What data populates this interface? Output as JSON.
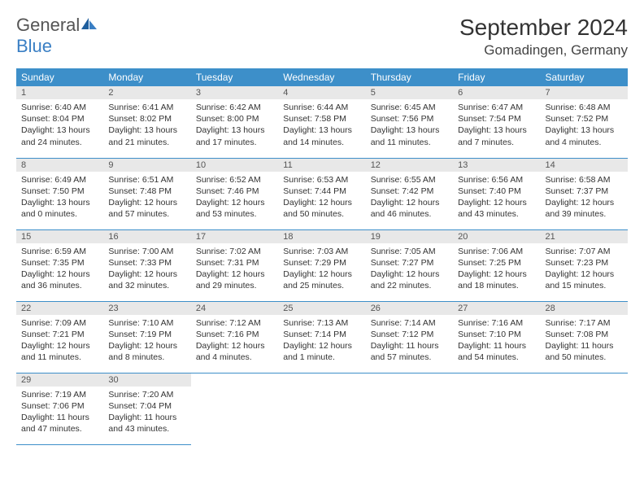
{
  "logo": {
    "general": "General",
    "blue": "Blue"
  },
  "title": "September 2024",
  "location": "Gomadingen, Germany",
  "colors": {
    "header_bg": "#3d8fc9",
    "header_fg": "#ffffff",
    "daynum_bg": "#e8e8e8",
    "border": "#3d8fc9",
    "logo_blue": "#3a7fc4"
  },
  "weekdays": [
    "Sunday",
    "Monday",
    "Tuesday",
    "Wednesday",
    "Thursday",
    "Friday",
    "Saturday"
  ],
  "weeks": [
    [
      {
        "n": "1",
        "sr": "6:40 AM",
        "ss": "8:04 PM",
        "dl": "13 hours and 24 minutes."
      },
      {
        "n": "2",
        "sr": "6:41 AM",
        "ss": "8:02 PM",
        "dl": "13 hours and 21 minutes."
      },
      {
        "n": "3",
        "sr": "6:42 AM",
        "ss": "8:00 PM",
        "dl": "13 hours and 17 minutes."
      },
      {
        "n": "4",
        "sr": "6:44 AM",
        "ss": "7:58 PM",
        "dl": "13 hours and 14 minutes."
      },
      {
        "n": "5",
        "sr": "6:45 AM",
        "ss": "7:56 PM",
        "dl": "13 hours and 11 minutes."
      },
      {
        "n": "6",
        "sr": "6:47 AM",
        "ss": "7:54 PM",
        "dl": "13 hours and 7 minutes."
      },
      {
        "n": "7",
        "sr": "6:48 AM",
        "ss": "7:52 PM",
        "dl": "13 hours and 4 minutes."
      }
    ],
    [
      {
        "n": "8",
        "sr": "6:49 AM",
        "ss": "7:50 PM",
        "dl": "13 hours and 0 minutes."
      },
      {
        "n": "9",
        "sr": "6:51 AM",
        "ss": "7:48 PM",
        "dl": "12 hours and 57 minutes."
      },
      {
        "n": "10",
        "sr": "6:52 AM",
        "ss": "7:46 PM",
        "dl": "12 hours and 53 minutes."
      },
      {
        "n": "11",
        "sr": "6:53 AM",
        "ss": "7:44 PM",
        "dl": "12 hours and 50 minutes."
      },
      {
        "n": "12",
        "sr": "6:55 AM",
        "ss": "7:42 PM",
        "dl": "12 hours and 46 minutes."
      },
      {
        "n": "13",
        "sr": "6:56 AM",
        "ss": "7:40 PM",
        "dl": "12 hours and 43 minutes."
      },
      {
        "n": "14",
        "sr": "6:58 AM",
        "ss": "7:37 PM",
        "dl": "12 hours and 39 minutes."
      }
    ],
    [
      {
        "n": "15",
        "sr": "6:59 AM",
        "ss": "7:35 PM",
        "dl": "12 hours and 36 minutes."
      },
      {
        "n": "16",
        "sr": "7:00 AM",
        "ss": "7:33 PM",
        "dl": "12 hours and 32 minutes."
      },
      {
        "n": "17",
        "sr": "7:02 AM",
        "ss": "7:31 PM",
        "dl": "12 hours and 29 minutes."
      },
      {
        "n": "18",
        "sr": "7:03 AM",
        "ss": "7:29 PM",
        "dl": "12 hours and 25 minutes."
      },
      {
        "n": "19",
        "sr": "7:05 AM",
        "ss": "7:27 PM",
        "dl": "12 hours and 22 minutes."
      },
      {
        "n": "20",
        "sr": "7:06 AM",
        "ss": "7:25 PM",
        "dl": "12 hours and 18 minutes."
      },
      {
        "n": "21",
        "sr": "7:07 AM",
        "ss": "7:23 PM",
        "dl": "12 hours and 15 minutes."
      }
    ],
    [
      {
        "n": "22",
        "sr": "7:09 AM",
        "ss": "7:21 PM",
        "dl": "12 hours and 11 minutes."
      },
      {
        "n": "23",
        "sr": "7:10 AM",
        "ss": "7:19 PM",
        "dl": "12 hours and 8 minutes."
      },
      {
        "n": "24",
        "sr": "7:12 AM",
        "ss": "7:16 PM",
        "dl": "12 hours and 4 minutes."
      },
      {
        "n": "25",
        "sr": "7:13 AM",
        "ss": "7:14 PM",
        "dl": "12 hours and 1 minute."
      },
      {
        "n": "26",
        "sr": "7:14 AM",
        "ss": "7:12 PM",
        "dl": "11 hours and 57 minutes."
      },
      {
        "n": "27",
        "sr": "7:16 AM",
        "ss": "7:10 PM",
        "dl": "11 hours and 54 minutes."
      },
      {
        "n": "28",
        "sr": "7:17 AM",
        "ss": "7:08 PM",
        "dl": "11 hours and 50 minutes."
      }
    ],
    [
      {
        "n": "29",
        "sr": "7:19 AM",
        "ss": "7:06 PM",
        "dl": "11 hours and 47 minutes."
      },
      {
        "n": "30",
        "sr": "7:20 AM",
        "ss": "7:04 PM",
        "dl": "11 hours and 43 minutes."
      },
      null,
      null,
      null,
      null,
      null
    ]
  ],
  "labels": {
    "sunrise": "Sunrise: ",
    "sunset": "Sunset: ",
    "daylight": "Daylight: "
  }
}
